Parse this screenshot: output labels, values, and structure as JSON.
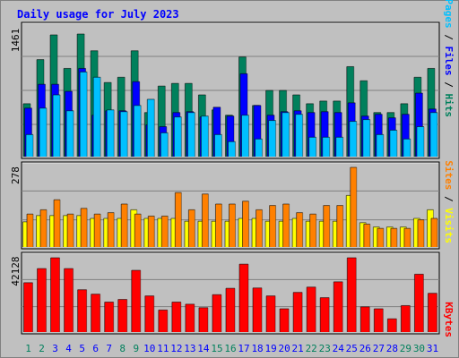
{
  "colors": {
    "background": "#c0c0c0",
    "title": "#0000ff",
    "hits": "#00805c",
    "files": "#0000ff",
    "pages": "#00c0ff",
    "sites": "#ff8000",
    "visits": "#ffff00",
    "kbytes": "#ff0000",
    "weekend_day": "#00805c",
    "weekday": "#0000ff",
    "gridline": "#808080"
  },
  "chart_data": {
    "type": "bar",
    "title": "Daily usage for July 2023",
    "days": [
      "1",
      "2",
      "3",
      "4",
      "5",
      "6",
      "7",
      "8",
      "9",
      "10",
      "11",
      "12",
      "13",
      "14",
      "15",
      "16",
      "17",
      "18",
      "19",
      "20",
      "21",
      "22",
      "23",
      "24",
      "25",
      "26",
      "27",
      "28",
      "29",
      "30",
      "31"
    ],
    "weekend_days": [
      "1",
      "2",
      "8",
      "9",
      "15",
      "16",
      "22",
      "23",
      "29",
      "30"
    ],
    "panels": [
      {
        "id": "traffic",
        "ymax_label": "1461",
        "ymax": 1461,
        "legend": [
          "Pages",
          "Files",
          "Hits"
        ],
        "series": [
          {
            "name": "Hits",
            "color": "hits",
            "values": [
              600,
              1100,
              1380,
              1000,
              1390,
              1200,
              840,
              900,
              1200,
              500,
              800,
              830,
              830,
              700,
              530,
              470,
              1130,
              580,
              750,
              750,
              700,
              600,
              630,
              630,
              1020,
              860,
              500,
              500,
              600,
              900,
              1000
            ]
          },
          {
            "name": "Files",
            "color": "files",
            "values": [
              550,
              820,
              820,
              740,
              1000,
              470,
              520,
              520,
              850,
              360,
              340,
              500,
              510,
              450,
              560,
              460,
              940,
              580,
              470,
              510,
              520,
              500,
              510,
              500,
              610,
              460,
              480,
              440,
              480,
              720,
              540
            ]
          },
          {
            "name": "Pages",
            "color": "pages",
            "values": [
              250,
              550,
              700,
              520,
              960,
              900,
              530,
              510,
              580,
              650,
              270,
              450,
              500,
              460,
              250,
              170,
              470,
              200,
              410,
              500,
              480,
              220,
              220,
              220,
              400,
              420,
              250,
              300,
              200,
              340,
              500
            ]
          }
        ]
      },
      {
        "id": "visitors",
        "ymax_label": "278",
        "ymax": 278,
        "legend": [
          "Sites",
          "Visits"
        ],
        "series": [
          {
            "name": "Visits",
            "color": "visits",
            "values": [
              88,
              110,
              110,
              110,
              110,
              100,
              100,
              100,
              130,
              100,
              100,
              100,
              90,
              90,
              90,
              90,
              100,
              100,
              90,
              90,
              100,
              90,
              90,
              90,
              180,
              85,
              70,
              70,
              70,
              100,
              130
            ]
          },
          {
            "name": "Sites",
            "color": "sites",
            "values": [
              115,
              130,
              165,
              115,
              135,
              115,
              120,
              150,
              115,
              108,
              108,
              190,
              130,
              185,
              150,
              150,
              160,
              130,
              145,
              150,
              120,
              115,
              145,
              145,
              278,
              80,
              65,
              65,
              65,
              95,
              100
            ]
          }
        ]
      },
      {
        "id": "kbytes",
        "ymax_label": "42128",
        "ymax": 42128,
        "legend": [
          "KBytes"
        ],
        "series": [
          {
            "name": "KBytes",
            "color": "kbytes",
            "values": [
              28000,
              36000,
              42128,
              36000,
              24000,
              21500,
              17000,
              18500,
              35000,
              20500,
              12500,
              17000,
              15800,
              13800,
              21200,
              24800,
              38500,
              25000,
              20500,
              13200,
              22500,
              25500,
              19500,
              28500,
              42128,
              14300,
              13200,
              7500,
              15000,
              32800,
              22000
            ]
          }
        ]
      }
    ]
  }
}
